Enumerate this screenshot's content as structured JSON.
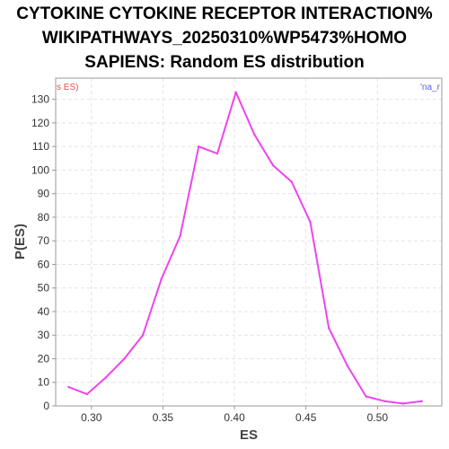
{
  "chart_data": {
    "type": "line",
    "title_lines": [
      "CYTOKINE CYTOKINE RECEPTOR INTERACTION%",
      "WIKIPATHWAYS_20250310%WP5473%HOMO",
      "SAPIENS: Random ES distribution"
    ],
    "xlabel": "ES",
    "ylabel": "P(ES)",
    "xlim": [
      0.275,
      0.545
    ],
    "ylim": [
      0,
      139
    ],
    "x_ticks": [
      0.3,
      0.35,
      0.4,
      0.45,
      0.5
    ],
    "x_tick_labels": [
      "0.30",
      "0.35",
      "0.40",
      "0.45",
      "0.50"
    ],
    "y_ticks": [
      0,
      10,
      20,
      30,
      40,
      50,
      60,
      70,
      80,
      90,
      100,
      110,
      120,
      130
    ],
    "y_tick_labels": [
      "0",
      "10",
      "20",
      "30",
      "40",
      "50",
      "60",
      "70",
      "80",
      "90",
      "100",
      "110",
      "120",
      "130"
    ],
    "grid": true,
    "legend_left_text": "s ES)",
    "legend_left_color": "#e05050",
    "legend_right_text": "'na_r",
    "legend_right_color": "#5a5ae6",
    "series": [
      {
        "color": "#ee44ee",
        "x": [
          0.284,
          0.297,
          0.31,
          0.323,
          0.336,
          0.349,
          0.362,
          0.375,
          0.388,
          0.401,
          0.414,
          0.427,
          0.44,
          0.453,
          0.466,
          0.479,
          0.492,
          0.505,
          0.518,
          0.531
        ],
        "y": [
          8,
          5,
          12,
          20,
          30,
          54,
          72,
          110,
          107,
          133,
          115,
          102,
          95,
          78,
          33,
          17,
          4,
          2,
          1,
          2
        ]
      }
    ]
  }
}
